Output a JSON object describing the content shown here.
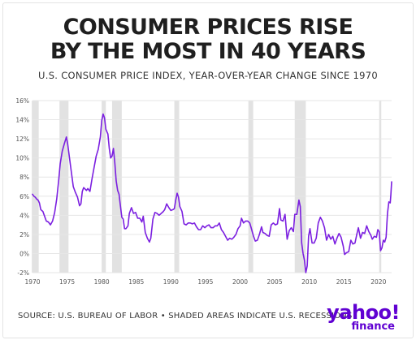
{
  "title_line1": "CONSUMER PRICES RISE",
  "title_line2": "BY THE MOST IN 40 YEARS",
  "subtitle": "U.S. CONSUMER PRICE INDEX, YEAR-OVER-YEAR CHANGE SINCE 1970",
  "footer": "SOURCE: U.S. BUREAU OF LABOR • SHADED AREAS INDICATE U.S. RECESSIONS",
  "logo": {
    "main": "yahoo!",
    "sub": "finance"
  },
  "colors": {
    "line": "#7b1fe0",
    "recession": "#e2e2e2",
    "grid": "#e6e6e6",
    "axis_text": "#555555",
    "logo": "#6001d2"
  },
  "chart_data": {
    "type": "line",
    "title": "",
    "xlabel": "",
    "ylabel": "",
    "xlim": [
      1970,
      2021.9
    ],
    "ylim": [
      -2,
      16
    ],
    "y_ticks": [
      -2,
      0,
      2,
      4,
      6,
      8,
      10,
      12,
      14,
      16
    ],
    "y_tick_labels": [
      "-2%",
      "0%",
      "2%",
      "4%",
      "6%",
      "8%",
      "10%",
      "12%",
      "14%",
      "16%"
    ],
    "x_ticks": [
      1970,
      1975,
      1980,
      1985,
      1990,
      1995,
      2000,
      2005,
      2010,
      2015,
      2020
    ],
    "x_tick_labels": [
      "1970",
      "1975",
      "1980",
      "1985",
      "1990",
      "1995",
      "2000",
      "2005",
      "2010",
      "2015",
      "2020"
    ],
    "grid": true,
    "recessions": [
      [
        1969.9,
        1970.9
      ],
      [
        1973.9,
        1975.2
      ],
      [
        1980.0,
        1980.6
      ],
      [
        1981.5,
        1982.9
      ],
      [
        1990.5,
        1991.2
      ],
      [
        2001.2,
        2001.9
      ],
      [
        2007.9,
        2009.5
      ],
      [
        2020.1,
        2020.4
      ]
    ],
    "series": [
      {
        "points": [
          [
            1970.0,
            6.2
          ],
          [
            1970.2,
            6.0
          ],
          [
            1970.4,
            5.9
          ],
          [
            1970.6,
            5.7
          ],
          [
            1970.8,
            5.6
          ],
          [
            1971.0,
            5.3
          ],
          [
            1971.2,
            4.6
          ],
          [
            1971.5,
            4.4
          ],
          [
            1971.8,
            3.8
          ],
          [
            1972.0,
            3.4
          ],
          [
            1972.3,
            3.3
          ],
          [
            1972.6,
            3.0
          ],
          [
            1972.9,
            3.4
          ],
          [
            1973.2,
            4.3
          ],
          [
            1973.5,
            5.7
          ],
          [
            1973.8,
            7.8
          ],
          [
            1974.0,
            9.4
          ],
          [
            1974.3,
            10.7
          ],
          [
            1974.6,
            11.5
          ],
          [
            1974.9,
            12.2
          ],
          [
            1975.1,
            11.4
          ],
          [
            1975.4,
            9.7
          ],
          [
            1975.6,
            8.6
          ],
          [
            1975.9,
            7.0
          ],
          [
            1976.2,
            6.4
          ],
          [
            1976.5,
            5.9
          ],
          [
            1976.8,
            5.0
          ],
          [
            1977.0,
            5.2
          ],
          [
            1977.2,
            6.5
          ],
          [
            1977.4,
            6.9
          ],
          [
            1977.8,
            6.6
          ],
          [
            1978.0,
            6.8
          ],
          [
            1978.3,
            6.5
          ],
          [
            1978.6,
            7.8
          ],
          [
            1978.9,
            9.0
          ],
          [
            1979.2,
            10.2
          ],
          [
            1979.5,
            10.9
          ],
          [
            1979.8,
            12.2
          ],
          [
            1980.0,
            13.9
          ],
          [
            1980.2,
            14.6
          ],
          [
            1980.4,
            14.2
          ],
          [
            1980.6,
            13.0
          ],
          [
            1980.9,
            12.5
          ],
          [
            1981.1,
            11.0
          ],
          [
            1981.3,
            10.0
          ],
          [
            1981.5,
            10.2
          ],
          [
            1981.7,
            11.0
          ],
          [
            1981.9,
            9.5
          ],
          [
            1982.1,
            7.6
          ],
          [
            1982.3,
            6.6
          ],
          [
            1982.5,
            6.2
          ],
          [
            1982.7,
            5.0
          ],
          [
            1982.9,
            3.8
          ],
          [
            1983.1,
            3.6
          ],
          [
            1983.3,
            2.6
          ],
          [
            1983.5,
            2.6
          ],
          [
            1983.8,
            2.9
          ],
          [
            1984.0,
            4.2
          ],
          [
            1984.3,
            4.8
          ],
          [
            1984.6,
            4.2
          ],
          [
            1984.9,
            4.3
          ],
          [
            1985.2,
            3.7
          ],
          [
            1985.5,
            3.7
          ],
          [
            1985.8,
            3.3
          ],
          [
            1986.0,
            3.9
          ],
          [
            1986.3,
            2.2
          ],
          [
            1986.6,
            1.6
          ],
          [
            1986.9,
            1.2
          ],
          [
            1987.1,
            1.6
          ],
          [
            1987.4,
            3.6
          ],
          [
            1987.7,
            4.3
          ],
          [
            1988.0,
            4.2
          ],
          [
            1988.3,
            4.0
          ],
          [
            1988.6,
            4.2
          ],
          [
            1988.9,
            4.4
          ],
          [
            1989.1,
            4.6
          ],
          [
            1989.4,
            5.2
          ],
          [
            1989.7,
            4.8
          ],
          [
            1990.0,
            4.5
          ],
          [
            1990.3,
            4.6
          ],
          [
            1990.5,
            4.7
          ],
          [
            1990.7,
            5.6
          ],
          [
            1990.9,
            6.3
          ],
          [
            1991.1,
            5.9
          ],
          [
            1991.3,
            4.9
          ],
          [
            1991.6,
            4.4
          ],
          [
            1991.9,
            3.1
          ],
          [
            1992.2,
            3.0
          ],
          [
            1992.5,
            3.2
          ],
          [
            1992.8,
            3.2
          ],
          [
            1993.1,
            3.1
          ],
          [
            1993.4,
            3.2
          ],
          [
            1993.7,
            2.8
          ],
          [
            1994.0,
            2.5
          ],
          [
            1994.3,
            2.5
          ],
          [
            1994.6,
            2.9
          ],
          [
            1994.9,
            2.7
          ],
          [
            1995.2,
            2.9
          ],
          [
            1995.5,
            3.0
          ],
          [
            1995.8,
            2.7
          ],
          [
            1996.1,
            2.7
          ],
          [
            1996.4,
            2.9
          ],
          [
            1996.7,
            2.9
          ],
          [
            1997.0,
            3.2
          ],
          [
            1997.3,
            2.5
          ],
          [
            1997.6,
            2.2
          ],
          [
            1997.9,
            1.8
          ],
          [
            1998.2,
            1.4
          ],
          [
            1998.5,
            1.6
          ],
          [
            1998.8,
            1.5
          ],
          [
            1999.1,
            1.7
          ],
          [
            1999.4,
            2.0
          ],
          [
            1999.7,
            2.6
          ],
          [
            2000.0,
            2.9
          ],
          [
            2000.2,
            3.7
          ],
          [
            2000.5,
            3.2
          ],
          [
            2000.8,
            3.4
          ],
          [
            2001.1,
            3.4
          ],
          [
            2001.4,
            3.2
          ],
          [
            2001.6,
            2.7
          ],
          [
            2001.9,
            1.9
          ],
          [
            2002.2,
            1.3
          ],
          [
            2002.5,
            1.4
          ],
          [
            2002.8,
            2.0
          ],
          [
            2003.1,
            2.8
          ],
          [
            2003.3,
            2.2
          ],
          [
            2003.6,
            2.1
          ],
          [
            2003.9,
            1.9
          ],
          [
            2004.2,
            1.8
          ],
          [
            2004.5,
            3.0
          ],
          [
            2004.8,
            3.2
          ],
          [
            2005.1,
            3.0
          ],
          [
            2005.4,
            3.1
          ],
          [
            2005.7,
            4.7
          ],
          [
            2005.9,
            3.5
          ],
          [
            2006.2,
            3.4
          ],
          [
            2006.5,
            4.1
          ],
          [
            2006.8,
            1.5
          ],
          [
            2007.1,
            2.4
          ],
          [
            2007.4,
            2.7
          ],
          [
            2007.7,
            2.3
          ],
          [
            2007.9,
            4.1
          ],
          [
            2008.2,
            4.1
          ],
          [
            2008.5,
            5.6
          ],
          [
            2008.7,
            4.9
          ],
          [
            2008.9,
            1.1
          ],
          [
            2009.1,
            0.0
          ],
          [
            2009.3,
            -0.7
          ],
          [
            2009.5,
            -2.0
          ],
          [
            2009.7,
            -1.3
          ],
          [
            2009.9,
            1.8
          ],
          [
            2010.1,
            2.6
          ],
          [
            2010.4,
            1.1
          ],
          [
            2010.7,
            1.1
          ],
          [
            2011.0,
            1.6
          ],
          [
            2011.3,
            3.2
          ],
          [
            2011.6,
            3.8
          ],
          [
            2011.9,
            3.4
          ],
          [
            2012.2,
            2.7
          ],
          [
            2012.5,
            1.4
          ],
          [
            2012.8,
            2.0
          ],
          [
            2013.1,
            1.5
          ],
          [
            2013.4,
            1.8
          ],
          [
            2013.7,
            1.0
          ],
          [
            2014.0,
            1.6
          ],
          [
            2014.3,
            2.1
          ],
          [
            2014.6,
            1.7
          ],
          [
            2014.9,
            0.8
          ],
          [
            2015.1,
            -0.1
          ],
          [
            2015.4,
            0.1
          ],
          [
            2015.7,
            0.2
          ],
          [
            2016.0,
            1.4
          ],
          [
            2016.3,
            1.0
          ],
          [
            2016.6,
            1.1
          ],
          [
            2016.9,
            2.1
          ],
          [
            2017.1,
            2.7
          ],
          [
            2017.4,
            1.6
          ],
          [
            2017.7,
            2.2
          ],
          [
            2018.0,
            2.1
          ],
          [
            2018.3,
            2.9
          ],
          [
            2018.6,
            2.3
          ],
          [
            2018.9,
            1.9
          ],
          [
            2019.1,
            1.5
          ],
          [
            2019.4,
            1.8
          ],
          [
            2019.7,
            1.7
          ],
          [
            2019.9,
            2.5
          ],
          [
            2020.1,
            2.3
          ],
          [
            2020.3,
            0.3
          ],
          [
            2020.5,
            0.6
          ],
          [
            2020.7,
            1.4
          ],
          [
            2020.9,
            1.2
          ],
          [
            2021.1,
            1.7
          ],
          [
            2021.3,
            4.2
          ],
          [
            2021.5,
            5.4
          ],
          [
            2021.7,
            5.3
          ],
          [
            2021.8,
            6.2
          ],
          [
            2021.9,
            7.5
          ]
        ]
      }
    ]
  }
}
